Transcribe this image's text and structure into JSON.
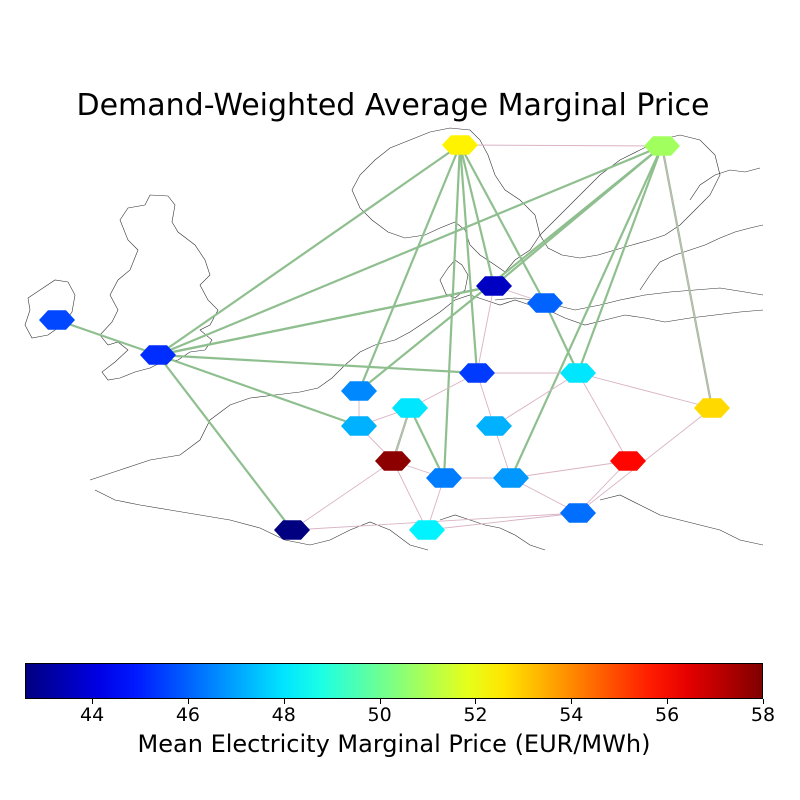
{
  "title": "Demand-Weighted Average Marginal Price",
  "colorbar": {
    "label": "Mean Electricity Marginal Price (EUR/MWh)",
    "min": 42.6,
    "max": 58.0,
    "ticks": [
      "44",
      "46",
      "48",
      "50",
      "52",
      "54",
      "56",
      "58"
    ],
    "colormap": "jet"
  },
  "map_data": {
    "type": "network-map",
    "nodes": [
      {
        "id": "IE",
        "price": 45.6
      },
      {
        "id": "GB",
        "price": 45.2
      },
      {
        "id": "NO",
        "price": 52.4
      },
      {
        "id": "SE",
        "price": 50.8
      },
      {
        "id": "DK",
        "price": 43.6
      },
      {
        "id": "DK2",
        "price": 46.0
      },
      {
        "id": "NL",
        "price": 46.6
      },
      {
        "id": "BE",
        "price": 47.2
      },
      {
        "id": "LU",
        "price": 48.0
      },
      {
        "id": "DE",
        "price": 45.4
      },
      {
        "id": "PL",
        "price": 48.0
      },
      {
        "id": "LT",
        "price": 52.8
      },
      {
        "id": "CZ",
        "price": 47.2
      },
      {
        "id": "FR",
        "price": 57.8
      },
      {
        "id": "CH",
        "price": 46.4
      },
      {
        "id": "AT",
        "price": 46.8
      },
      {
        "id": "HU",
        "price": 56.0
      },
      {
        "id": "SI",
        "price": 46.2
      },
      {
        "id": "ES",
        "price": 42.6
      },
      {
        "id": "IT",
        "price": 48.2
      }
    ],
    "links": [
      {
        "type": "dc",
        "from": "IE",
        "to": "GB"
      },
      {
        "type": "dc",
        "from": "GB",
        "to": "NO"
      },
      {
        "type": "dc",
        "from": "GB",
        "to": "SE"
      },
      {
        "type": "dc",
        "from": "GB",
        "to": "DK"
      },
      {
        "type": "dc",
        "from": "GB",
        "to": "DE"
      },
      {
        "type": "dc",
        "from": "GB",
        "to": "BE"
      },
      {
        "type": "dc",
        "from": "GB",
        "to": "ES"
      },
      {
        "type": "dc",
        "from": "NO",
        "to": "NL"
      },
      {
        "type": "dc",
        "from": "NO",
        "to": "DK"
      },
      {
        "type": "dc",
        "from": "NO",
        "to": "DE"
      },
      {
        "type": "dc",
        "from": "NO",
        "to": "DK2"
      },
      {
        "type": "dc",
        "from": "NO",
        "to": "CH"
      },
      {
        "type": "dc",
        "from": "SE",
        "to": "DK"
      },
      {
        "type": "dc",
        "from": "SE",
        "to": "NL"
      },
      {
        "type": "dc",
        "from": "SE",
        "to": "LT"
      },
      {
        "type": "dc",
        "from": "SE",
        "to": "PL"
      },
      {
        "type": "dc",
        "from": "SE",
        "to": "AT"
      },
      {
        "type": "dc",
        "from": "DK",
        "to": "GB"
      },
      {
        "type": "dc",
        "from": "DK2",
        "to": "PL"
      },
      {
        "type": "dc",
        "from": "LU",
        "to": "CH"
      },
      {
        "type": "dc",
        "from": "LU",
        "to": "FR"
      },
      {
        "type": "ac",
        "from": "NO",
        "to": "SE"
      },
      {
        "type": "ac",
        "from": "SE",
        "to": "LT"
      },
      {
        "type": "ac",
        "from": "DK",
        "to": "DE"
      },
      {
        "type": "ac",
        "from": "DK2",
        "to": "DK"
      },
      {
        "type": "ac",
        "from": "DE",
        "to": "PL"
      },
      {
        "type": "ac",
        "from": "DE",
        "to": "LU"
      },
      {
        "type": "ac",
        "from": "DE",
        "to": "CZ"
      },
      {
        "type": "ac",
        "from": "NL",
        "to": "BE"
      },
      {
        "type": "ac",
        "from": "BE",
        "to": "LU"
      },
      {
        "type": "ac",
        "from": "BE",
        "to": "FR"
      },
      {
        "type": "ac",
        "from": "LU",
        "to": "FR"
      },
      {
        "type": "ac",
        "from": "FR",
        "to": "ES"
      },
      {
        "type": "ac",
        "from": "FR",
        "to": "CH"
      },
      {
        "type": "ac",
        "from": "FR",
        "to": "IT"
      },
      {
        "type": "ac",
        "from": "CH",
        "to": "AT"
      },
      {
        "type": "ac",
        "from": "CH",
        "to": "IT"
      },
      {
        "type": "ac",
        "from": "AT",
        "to": "CZ"
      },
      {
        "type": "ac",
        "from": "AT",
        "to": "HU"
      },
      {
        "type": "ac",
        "from": "AT",
        "to": "SI"
      },
      {
        "type": "ac",
        "from": "CZ",
        "to": "PL"
      },
      {
        "type": "ac",
        "from": "PL",
        "to": "HU"
      },
      {
        "type": "ac",
        "from": "PL",
        "to": "LT"
      },
      {
        "type": "ac",
        "from": "HU",
        "to": "SI"
      },
      {
        "type": "ac",
        "from": "SI",
        "to": "IT"
      },
      {
        "type": "ac",
        "from": "ES",
        "to": "SI"
      },
      {
        "type": "ac",
        "from": "LT",
        "to": "SI"
      }
    ]
  },
  "colors": {
    "dc_link": "#8fbf8f",
    "ac_link": "#d9b3c4",
    "coastline": "#333333"
  }
}
